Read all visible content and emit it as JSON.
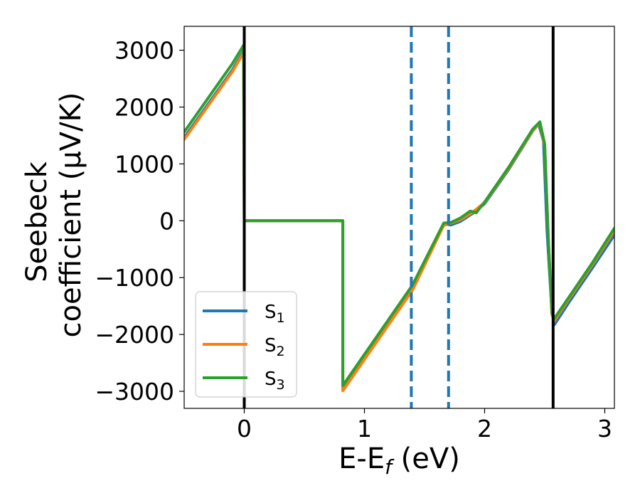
{
  "chart_data": {
    "type": "line",
    "xlabel": "E-E",
    "xlabel_sub": "f",
    "xlabel_unit": "(eV)",
    "ylabel_line1": "Seebeck",
    "ylabel_line2": "coefficient  (μV/K)",
    "xlim": [
      -0.5,
      3.08
    ],
    "ylim": [
      -3300,
      3420
    ],
    "x_ticks": [
      0,
      1,
      2,
      3
    ],
    "x_tick_labels": [
      "0",
      "1",
      "2",
      "3"
    ],
    "y_ticks": [
      -3000,
      -2000,
      -1000,
      0,
      1000,
      2000,
      3000
    ],
    "y_tick_labels": [
      "−3000",
      "−2000",
      "−1000",
      "0",
      "1000",
      "2000",
      "3000"
    ],
    "grid": false,
    "legend_position": "lower-left",
    "series": [
      {
        "name": "S",
        "sub": "1",
        "color": "#1f77b4",
        "points": [
          [
            -0.5,
            1460
          ],
          [
            -0.1,
            2650
          ],
          [
            -0.005,
            2990
          ],
          [
            0.0,
            0
          ],
          [
            0.82,
            0
          ],
          [
            0.82,
            -2960
          ],
          [
            1.0,
            -2410
          ],
          [
            1.2,
            -1800
          ],
          [
            1.4,
            -1190
          ],
          [
            1.66,
            -60
          ],
          [
            1.72,
            -75
          ],
          [
            1.8,
            -10
          ],
          [
            1.9,
            130
          ],
          [
            2.0,
            300
          ],
          [
            2.2,
            900
          ],
          [
            2.4,
            1580
          ],
          [
            2.45,
            1700
          ],
          [
            2.49,
            1400
          ],
          [
            2.52,
            -200
          ],
          [
            2.56,
            -1600
          ],
          [
            2.58,
            -1830
          ],
          [
            2.7,
            -1440
          ],
          [
            2.9,
            -820
          ],
          [
            3.08,
            -250
          ]
        ]
      },
      {
        "name": "S",
        "sub": "2",
        "color": "#ff7f0e",
        "points": [
          [
            -0.5,
            1430
          ],
          [
            -0.1,
            2620
          ],
          [
            -0.005,
            2960
          ],
          [
            0.0,
            0
          ],
          [
            0.82,
            0
          ],
          [
            0.82,
            -2990
          ],
          [
            1.0,
            -2440
          ],
          [
            1.2,
            -1830
          ],
          [
            1.4,
            -1220
          ],
          [
            1.66,
            -80
          ],
          [
            1.72,
            -40
          ],
          [
            1.8,
            20
          ],
          [
            1.9,
            150
          ],
          [
            2.0,
            320
          ],
          [
            2.2,
            920
          ],
          [
            2.4,
            1590
          ],
          [
            2.46,
            1720
          ],
          [
            2.5,
            1300
          ],
          [
            2.53,
            -300
          ],
          [
            2.56,
            -1650
          ],
          [
            2.58,
            -1760
          ],
          [
            2.7,
            -1380
          ],
          [
            2.9,
            -760
          ],
          [
            3.08,
            -170
          ]
        ]
      },
      {
        "name": "S",
        "sub": "3",
        "color": "#2ca02c",
        "points": [
          [
            -0.5,
            1560
          ],
          [
            -0.1,
            2760
          ],
          [
            -0.005,
            3090
          ],
          [
            0.0,
            0
          ],
          [
            0.82,
            0
          ],
          [
            0.82,
            -2900
          ],
          [
            1.0,
            -2350
          ],
          [
            1.2,
            -1740
          ],
          [
            1.4,
            -1130
          ],
          [
            1.66,
            -40
          ],
          [
            1.72,
            -30
          ],
          [
            1.8,
            50
          ],
          [
            1.88,
            170
          ],
          [
            1.93,
            140
          ],
          [
            2.0,
            330
          ],
          [
            2.2,
            940
          ],
          [
            2.4,
            1610
          ],
          [
            2.46,
            1740
          ],
          [
            2.5,
            1350
          ],
          [
            2.53,
            -300
          ],
          [
            2.56,
            -1620
          ],
          [
            2.58,
            -1720
          ],
          [
            2.7,
            -1350
          ],
          [
            2.9,
            -730
          ],
          [
            3.08,
            -130
          ]
        ]
      }
    ],
    "vlines": [
      {
        "x": 0.0,
        "style": "solid",
        "color": "#000000"
      },
      {
        "x": 2.57,
        "style": "solid",
        "color": "#000000"
      },
      {
        "x": 1.39,
        "style": "dashed",
        "color": "#1f77b4"
      },
      {
        "x": 1.7,
        "style": "dashed",
        "color": "#1f77b4"
      }
    ]
  }
}
